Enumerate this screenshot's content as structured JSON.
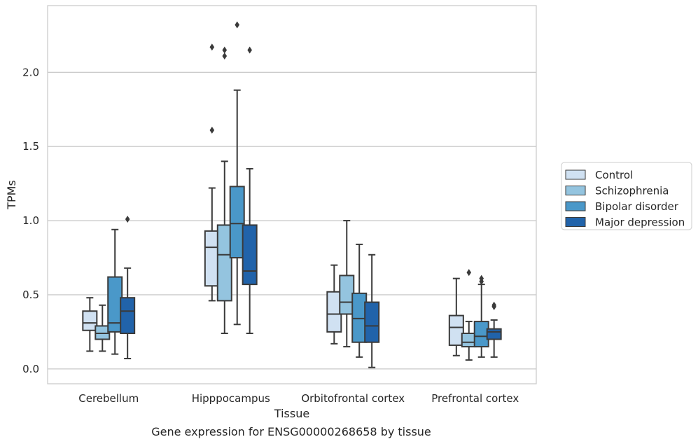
{
  "chart_data": {
    "type": "box",
    "title": "",
    "caption": "Gene expression for ENSG00000268658 by tissue",
    "xlabel": "Tissue",
    "ylabel": "TPMs",
    "ylim": [
      -0.1,
      2.45
    ],
    "yticks": [
      0.0,
      0.5,
      1.0,
      1.5,
      2.0
    ],
    "ytick_labels": [
      "0.0",
      "0.5",
      "1.0",
      "1.5",
      "2.0"
    ],
    "grid": "horizontal",
    "legend_position": "right",
    "categories": [
      "Cerebellum",
      "Hipppocampus",
      "Orbitofrontal cortex",
      "Prefrontal cortex"
    ],
    "series": [
      {
        "name": "Control",
        "color": "#d0e1f2",
        "boxes": [
          {
            "whislo": 0.12,
            "q1": 0.26,
            "med": 0.31,
            "q3": 0.39,
            "whishi": 0.48,
            "fliers": []
          },
          {
            "whislo": 0.46,
            "q1": 0.56,
            "med": 0.82,
            "q3": 0.93,
            "whishi": 1.22,
            "fliers": [
              1.61,
              2.17
            ]
          },
          {
            "whislo": 0.17,
            "q1": 0.25,
            "med": 0.37,
            "q3": 0.52,
            "whishi": 0.7,
            "fliers": []
          },
          {
            "whislo": 0.09,
            "q1": 0.16,
            "med": 0.28,
            "q3": 0.36,
            "whishi": 0.61,
            "fliers": []
          }
        ]
      },
      {
        "name": "Schizophrenia",
        "color": "#94c4df",
        "boxes": [
          {
            "whislo": 0.12,
            "q1": 0.2,
            "med": 0.24,
            "q3": 0.29,
            "whishi": 0.43,
            "fliers": []
          },
          {
            "whislo": 0.24,
            "q1": 0.46,
            "med": 0.77,
            "q3": 0.97,
            "whishi": 1.4,
            "fliers": [
              2.11,
              2.15
            ]
          },
          {
            "whislo": 0.15,
            "q1": 0.37,
            "med": 0.45,
            "q3": 0.63,
            "whishi": 1.0,
            "fliers": []
          },
          {
            "whislo": 0.06,
            "q1": 0.15,
            "med": 0.18,
            "q3": 0.24,
            "whishi": 0.32,
            "fliers": [
              0.65
            ]
          }
        ]
      },
      {
        "name": "Bipolar disorder",
        "color": "#4a98c9",
        "boxes": [
          {
            "whislo": 0.1,
            "q1": 0.25,
            "med": 0.31,
            "q3": 0.62,
            "whishi": 0.94,
            "fliers": []
          },
          {
            "whislo": 0.3,
            "q1": 0.75,
            "med": 0.98,
            "q3": 1.23,
            "whishi": 1.88,
            "fliers": [
              2.32
            ]
          },
          {
            "whislo": 0.08,
            "q1": 0.18,
            "med": 0.34,
            "q3": 0.51,
            "whishi": 0.84,
            "fliers": []
          },
          {
            "whislo": 0.08,
            "q1": 0.15,
            "med": 0.22,
            "q3": 0.32,
            "whishi": 0.57,
            "fliers": [
              0.59,
              0.61
            ]
          }
        ]
      },
      {
        "name": "Major depression",
        "color": "#2163aa",
        "boxes": [
          {
            "whislo": 0.07,
            "q1": 0.24,
            "med": 0.39,
            "q3": 0.48,
            "whishi": 0.68,
            "fliers": [
              1.01
            ]
          },
          {
            "whislo": 0.24,
            "q1": 0.57,
            "med": 0.66,
            "q3": 0.97,
            "whishi": 1.35,
            "fliers": [
              2.15
            ]
          },
          {
            "whislo": 0.01,
            "q1": 0.18,
            "med": 0.29,
            "q3": 0.45,
            "whishi": 0.77,
            "fliers": []
          },
          {
            "whislo": 0.08,
            "q1": 0.2,
            "med": 0.25,
            "q3": 0.27,
            "whishi": 0.33,
            "fliers": [
              0.42,
              0.43
            ]
          }
        ]
      }
    ]
  }
}
